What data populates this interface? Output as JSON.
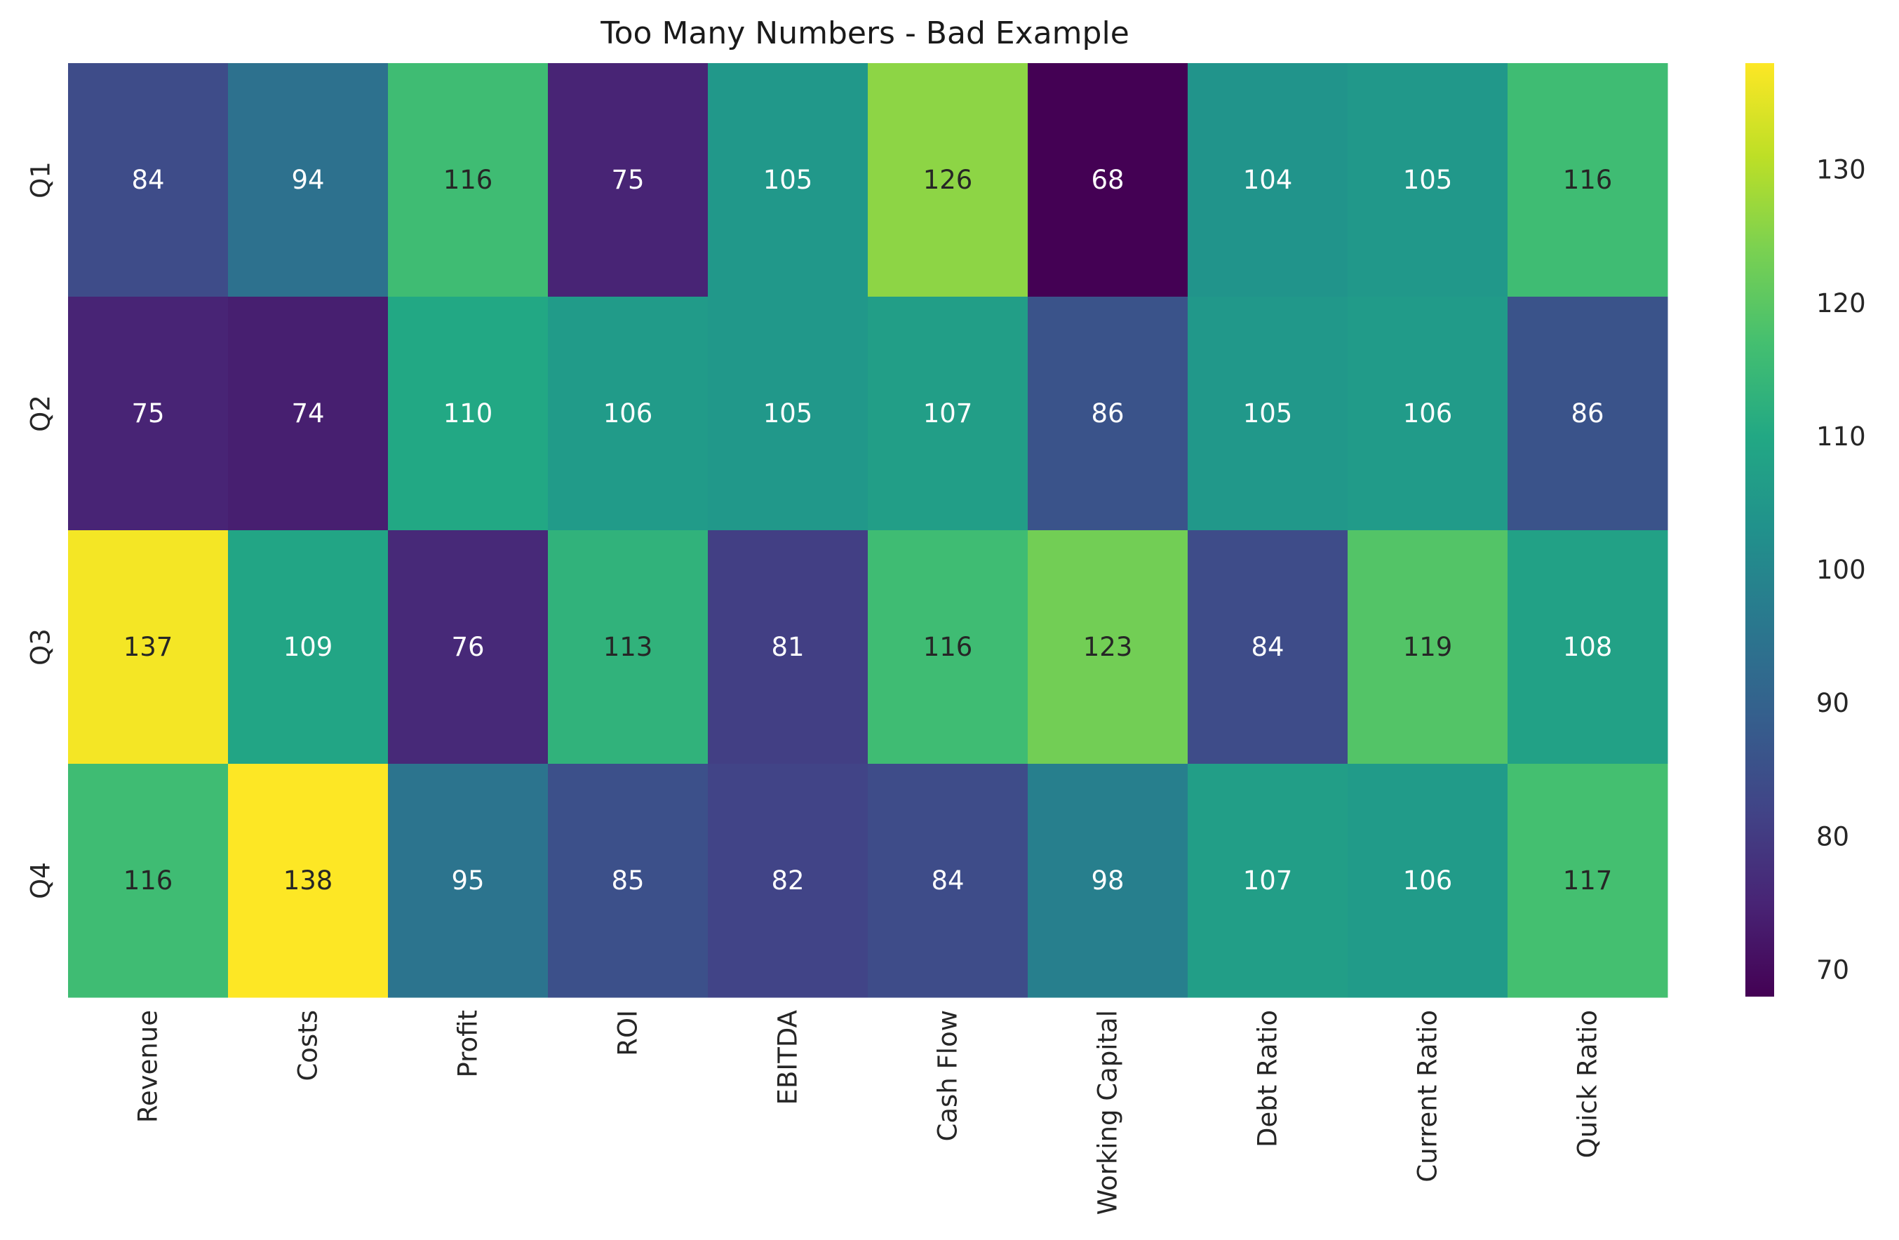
{
  "chart_data": {
    "type": "heatmap",
    "title": "Too Many Numbers - Bad Example",
    "colormap": "viridis",
    "x_categories": [
      "Revenue",
      "Costs",
      "Profit",
      "ROI",
      "EBITDA",
      "Cash Flow",
      "Working Capital",
      "Debt Ratio",
      "Current Ratio",
      "Quick Ratio"
    ],
    "y_categories": [
      "Q1",
      "Q2",
      "Q3",
      "Q4"
    ],
    "values": [
      [
        84,
        94,
        116,
        75,
        105,
        126,
        68,
        104,
        105,
        116
      ],
      [
        75,
        74,
        110,
        106,
        105,
        107,
        86,
        105,
        106,
        86
      ],
      [
        137,
        109,
        76,
        113,
        81,
        116,
        123,
        84,
        119,
        108
      ],
      [
        116,
        138,
        95,
        85,
        82,
        84,
        98,
        107,
        106,
        117
      ]
    ],
    "colorbar": {
      "min": 68,
      "max": 138,
      "ticks": [
        70,
        80,
        90,
        100,
        110,
        120,
        130
      ]
    },
    "xlabel": "",
    "ylabel": "",
    "grid": false,
    "legend": "none"
  }
}
